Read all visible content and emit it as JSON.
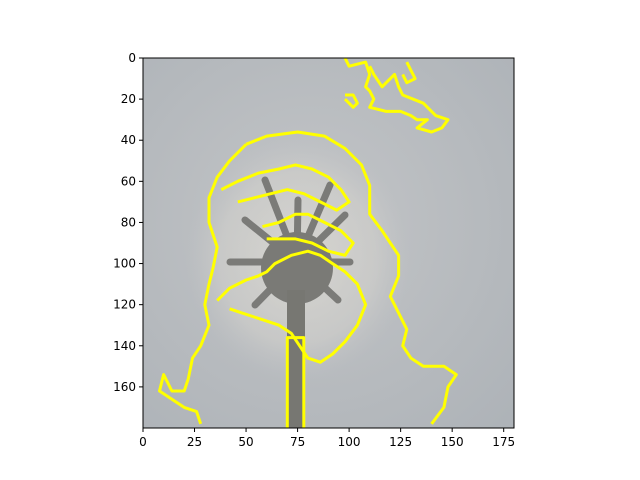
{
  "chart_data": {
    "type": "heatmap",
    "title": "",
    "xlabel": "",
    "ylabel": "",
    "image_size": [
      180,
      180
    ],
    "xlim": [
      0,
      180
    ],
    "ylim": [
      180,
      0
    ],
    "y_inverted": true,
    "xticks": [
      0,
      25,
      50,
      75,
      100,
      125,
      150,
      175
    ],
    "yticks": [
      0,
      20,
      40,
      60,
      80,
      100,
      120,
      140,
      160
    ],
    "xtick_labels": [
      "0",
      "25",
      "50",
      "75",
      "100",
      "125",
      "150",
      "175"
    ],
    "ytick_labels": [
      "0",
      "20",
      "40",
      "60",
      "80",
      "100",
      "120",
      "140",
      "160"
    ],
    "grid": false,
    "background_image": "grey sky with dandelion seed head",
    "overlay": {
      "description": "segmentation contour",
      "color": "#ffff00",
      "contours": [
        [
          [
            98,
            0
          ],
          [
            100,
            4
          ],
          [
            108,
            2
          ],
          [
            110,
            8
          ],
          [
            108,
            14
          ],
          [
            110,
            16
          ],
          [
            112,
            20
          ],
          [
            110,
            24
          ],
          [
            118,
            26
          ],
          [
            125,
            26
          ],
          [
            130,
            28
          ],
          [
            133,
            30
          ],
          [
            138,
            30
          ],
          [
            133,
            34
          ],
          [
            140,
            36
          ],
          [
            145,
            34
          ],
          [
            148,
            30
          ],
          [
            142,
            28
          ],
          [
            136,
            22
          ],
          [
            126,
            18
          ],
          [
            124,
            14
          ],
          [
            122,
            8
          ],
          [
            118,
            12
          ],
          [
            116,
            14
          ],
          [
            112,
            8
          ],
          [
            110,
            4
          ]
        ],
        [
          [
            98,
            20
          ],
          [
            100,
            22
          ],
          [
            102,
            24
          ],
          [
            104,
            22
          ],
          [
            102,
            18
          ],
          [
            98,
            18
          ]
        ],
        [
          [
            128,
            2
          ],
          [
            130,
            6
          ],
          [
            132,
            10
          ],
          [
            128,
            12
          ],
          [
            126,
            8
          ]
        ],
        [
          [
            50,
            42
          ],
          [
            60,
            38
          ],
          [
            75,
            36
          ],
          [
            88,
            38
          ],
          [
            98,
            44
          ],
          [
            106,
            52
          ],
          [
            110,
            62
          ],
          [
            110,
            76
          ],
          [
            116,
            84
          ],
          [
            120,
            90
          ],
          [
            124,
            96
          ],
          [
            124,
            106
          ],
          [
            120,
            116
          ],
          [
            124,
            124
          ],
          [
            128,
            132
          ],
          [
            126,
            140
          ],
          [
            130,
            146
          ],
          [
            136,
            150
          ],
          [
            146,
            150
          ],
          [
            152,
            154
          ],
          [
            148,
            160
          ],
          [
            146,
            170
          ],
          [
            140,
            178
          ]
        ],
        [
          [
            50,
            42
          ],
          [
            42,
            50
          ],
          [
            36,
            58
          ],
          [
            32,
            68
          ],
          [
            32,
            80
          ],
          [
            36,
            92
          ],
          [
            34,
            102
          ],
          [
            32,
            110
          ],
          [
            30,
            120
          ],
          [
            32,
            130
          ],
          [
            28,
            140
          ],
          [
            24,
            146
          ],
          [
            22,
            156
          ],
          [
            20,
            162
          ],
          [
            14,
            162
          ],
          [
            10,
            154
          ],
          [
            8,
            162
          ],
          [
            14,
            166
          ],
          [
            20,
            170
          ],
          [
            26,
            172
          ],
          [
            28,
            178
          ]
        ],
        [
          [
            70,
            180
          ],
          [
            70,
            136
          ],
          [
            78,
            136
          ],
          [
            78,
            180
          ]
        ],
        [
          [
            36,
            118
          ],
          [
            42,
            112
          ],
          [
            50,
            108
          ],
          [
            56,
            106
          ],
          [
            60,
            104
          ],
          [
            64,
            100
          ],
          [
            72,
            96
          ],
          [
            80,
            94
          ],
          [
            86,
            96
          ],
          [
            92,
            100
          ],
          [
            98,
            104
          ],
          [
            104,
            110
          ],
          [
            108,
            120
          ],
          [
            104,
            130
          ],
          [
            98,
            138
          ],
          [
            92,
            144
          ],
          [
            86,
            148
          ],
          [
            80,
            146
          ],
          [
            76,
            140
          ],
          [
            72,
            134
          ],
          [
            66,
            130
          ],
          [
            60,
            128
          ],
          [
            54,
            126
          ],
          [
            48,
            124
          ],
          [
            42,
            122
          ]
        ],
        [
          [
            58,
            82
          ],
          [
            66,
            80
          ],
          [
            74,
            76
          ],
          [
            80,
            76
          ],
          [
            88,
            80
          ],
          [
            96,
            84
          ],
          [
            102,
            90
          ],
          [
            98,
            96
          ],
          [
            90,
            94
          ],
          [
            82,
            90
          ],
          [
            74,
            88
          ],
          [
            66,
            88
          ],
          [
            60,
            88
          ]
        ],
        [
          [
            38,
            64
          ],
          [
            46,
            60
          ],
          [
            56,
            56
          ],
          [
            66,
            54
          ],
          [
            74,
            52
          ],
          [
            82,
            54
          ],
          [
            90,
            58
          ],
          [
            96,
            64
          ],
          [
            100,
            70
          ],
          [
            94,
            74
          ],
          [
            86,
            70
          ],
          [
            78,
            66
          ],
          [
            70,
            64
          ],
          [
            62,
            66
          ],
          [
            54,
            68
          ],
          [
            46,
            70
          ]
        ]
      ]
    }
  }
}
